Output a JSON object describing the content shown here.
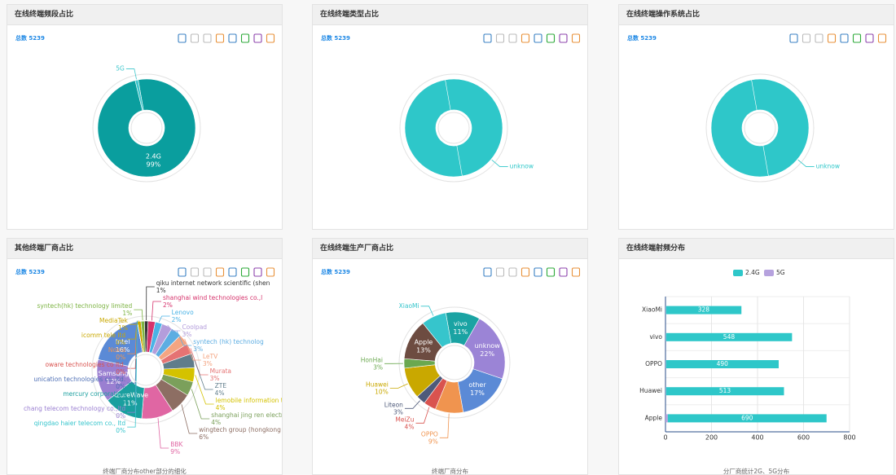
{
  "chart_data": [
    {
      "type": "pie",
      "title": "在线终端频段占比",
      "subtitle": "总数 5239",
      "categories": [
        "2.4G",
        "5G"
      ],
      "values": [
        99,
        1
      ],
      "value_labels": [
        "99%",
        null
      ],
      "colors": [
        "#0a9e9e",
        "#3cc6cc"
      ]
    },
    {
      "type": "pie",
      "title": "在线终端类型占比",
      "subtitle": "总数 5239",
      "categories": [
        "unknow"
      ],
      "values": [
        100
      ],
      "colors": [
        "#2ec7c9"
      ]
    },
    {
      "type": "pie",
      "title": "在线终端操作系统占比",
      "subtitle": "总数 5239",
      "categories": [
        "unknow"
      ],
      "values": [
        100
      ],
      "colors": [
        "#2ec7c9"
      ]
    },
    {
      "type": "pie",
      "title": "其他终端厂商占比",
      "subtitle": "总数 5239",
      "caption": "终端厂商分布other部分的细化",
      "categories": [
        "MediaTek",
        "syntech(hk) technology limited",
        "qiku internet network scientific (shen",
        "shanghai wind technologies co.,l",
        "Lenovo",
        "Coolpad",
        "syntech (hk) technolog",
        "LeTV",
        "Murata",
        "ZTE",
        "lemobile information techn",
        "shanghai jing ren electronic techn",
        "wingtech group (hongkong ) limite",
        "BBK",
        "AzureWave",
        "Samsung",
        "Intel",
        "icomm tele ltd",
        "Nokia",
        "oware technologies co ltd.",
        "unication technologies co.,ltd.",
        "mercury corporation",
        "chang telecom technology co.,ltd",
        "qingdao haier telecom co., ltd"
      ],
      "values": [
        1,
        1,
        1,
        2,
        2,
        3,
        3,
        3,
        3,
        4,
        4,
        4,
        6,
        9,
        11,
        12,
        16,
        0,
        0,
        0,
        0,
        0,
        0,
        0
      ],
      "value_labels": [
        "1%",
        "1%",
        "1%",
        "2%",
        "2%",
        "3%",
        "3%",
        "3%",
        "3%",
        "4%",
        "4%",
        "4%",
        "6%",
        "9%",
        "11%",
        "12%",
        "16%",
        "0%",
        "0%",
        "0%",
        "0%",
        "0%",
        "0%",
        "0%"
      ],
      "colors": [
        "#c9a800",
        "#7cb342",
        "#333333",
        "#d6336c",
        "#4ab3e6",
        "#b39ddb",
        "#5dade2",
        "#f4a582",
        "#e57373",
        "#607d8b",
        "#d4c200",
        "#7ba05b",
        "#8d6e63",
        "#e066a3",
        "#1a9f9f",
        "#9a7fd1",
        "#5b8ad6",
        "#c9a800",
        "#f0944f",
        "#d9534f",
        "#4e6fb5",
        "#1a9f9f",
        "#9a7fd1",
        "#36c5cc"
      ]
    },
    {
      "type": "pie",
      "title": "在线终端生产厂商占比",
      "subtitle": "总数 5239",
      "caption": "终端厂商分布",
      "categories": [
        "vivo",
        "unknow",
        "other",
        "OPPO",
        "MeiZu",
        "Liteon",
        "Huawei",
        "HonHai",
        "Apple",
        "XiaoMi"
      ],
      "values": [
        11,
        22,
        17,
        9,
        4,
        3,
        10,
        3,
        13,
        8
      ],
      "value_labels": [
        "11%",
        "22%",
        "17%",
        "9%",
        "4%",
        "3%",
        "10%",
        "3%",
        "13%",
        null
      ],
      "colors": [
        "#1aa3a3",
        "#9b84d6",
        "#5b8ad6",
        "#f0944f",
        "#d9534f",
        "#4e5a7a",
        "#c9a800",
        "#6aa84f",
        "#6d4c41",
        "#36c5cc"
      ]
    },
    {
      "type": "bar",
      "title": "在线终端射频分布",
      "caption": "分厂商统计2G、5G分布",
      "categories": [
        "XiaoMi",
        "vivo",
        "OPPO",
        "Huawei",
        "Apple"
      ],
      "series": [
        {
          "name": "2.4G",
          "color": "#2ec7c9",
          "values": [
            328,
            548,
            490,
            513,
            690
          ]
        },
        {
          "name": "5G",
          "color": "#b6a2de",
          "values": [
            2,
            2,
            2,
            2,
            10
          ]
        }
      ],
      "xlim": [
        0,
        800
      ],
      "xticks": [
        0,
        200,
        400,
        600,
        800
      ],
      "grid": true,
      "legend": "top"
    }
  ]
}
